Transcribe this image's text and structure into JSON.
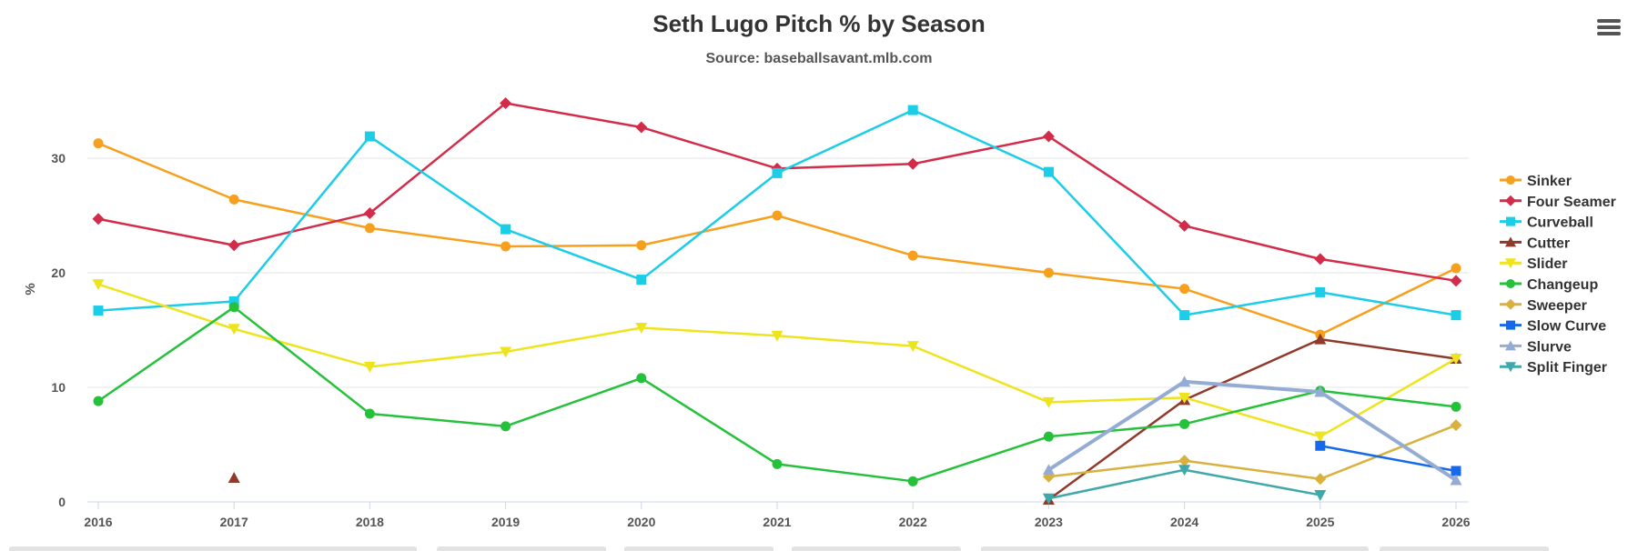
{
  "chart_data": {
    "type": "line",
    "title": "Seth Lugo Pitch % by Season",
    "subtitle": "Source: baseballsavant.mlb.com",
    "xlabel": "",
    "ylabel": "%",
    "categories": [
      "2016",
      "2017",
      "2018",
      "2019",
      "2020",
      "2021",
      "2022",
      "2023",
      "2024",
      "2025",
      "2026"
    ],
    "yticks": [
      0,
      10,
      20,
      30
    ],
    "ylim": [
      0,
      36
    ],
    "grid": true,
    "legend_position": "right",
    "series": [
      {
        "name": "Sinker",
        "color": "#f7a01d",
        "marker": "circle",
        "values": [
          31.3,
          26.4,
          23.9,
          22.3,
          22.4,
          25.0,
          21.5,
          20.0,
          18.6,
          14.6,
          20.4
        ]
      },
      {
        "name": "Four Seamer",
        "color": "#d22c4a",
        "marker": "diamond",
        "values": [
          24.7,
          22.4,
          25.2,
          34.8,
          32.7,
          29.1,
          29.5,
          31.9,
          24.1,
          21.2,
          19.3
        ]
      },
      {
        "name": "Curveball",
        "color": "#1bcde7",
        "marker": "square",
        "values": [
          16.7,
          17.5,
          31.9,
          23.8,
          19.4,
          28.7,
          34.2,
          28.8,
          16.3,
          18.3,
          16.3
        ]
      },
      {
        "name": "Cutter",
        "color": "#8f3a2b",
        "marker": "triangle",
        "values": [
          null,
          2.1,
          null,
          null,
          null,
          null,
          null,
          0.2,
          8.9,
          14.2,
          12.5
        ]
      },
      {
        "name": "Slider",
        "color": "#eee41d",
        "marker": "triangle-down",
        "values": [
          19.0,
          15.1,
          11.8,
          13.1,
          15.2,
          14.5,
          13.6,
          8.7,
          9.1,
          5.7,
          12.5
        ]
      },
      {
        "name": "Changeup",
        "color": "#25c13b",
        "marker": "circle",
        "values": [
          8.8,
          17.0,
          7.7,
          6.6,
          10.8,
          3.3,
          1.8,
          5.7,
          6.8,
          9.7,
          8.3
        ]
      },
      {
        "name": "Sweeper",
        "color": "#d9b13f",
        "marker": "diamond",
        "values": [
          null,
          null,
          null,
          null,
          null,
          null,
          null,
          2.2,
          3.6,
          2.0,
          6.7
        ]
      },
      {
        "name": "Slow Curve",
        "color": "#1569ea",
        "marker": "square",
        "values": [
          null,
          null,
          null,
          null,
          null,
          null,
          null,
          null,
          null,
          4.9,
          2.7
        ]
      },
      {
        "name": "Slurve",
        "color": "#94acd4",
        "marker": "triangle",
        "values": [
          null,
          null,
          null,
          null,
          null,
          null,
          null,
          2.8,
          10.5,
          9.6,
          1.9
        ]
      },
      {
        "name": "Split Finger",
        "color": "#3fa8a8",
        "marker": "triangle-down",
        "values": [
          null,
          null,
          null,
          null,
          null,
          null,
          null,
          0.3,
          2.8,
          0.6,
          null
        ]
      }
    ]
  },
  "menu": {
    "icon": "hamburger-menu-icon"
  }
}
